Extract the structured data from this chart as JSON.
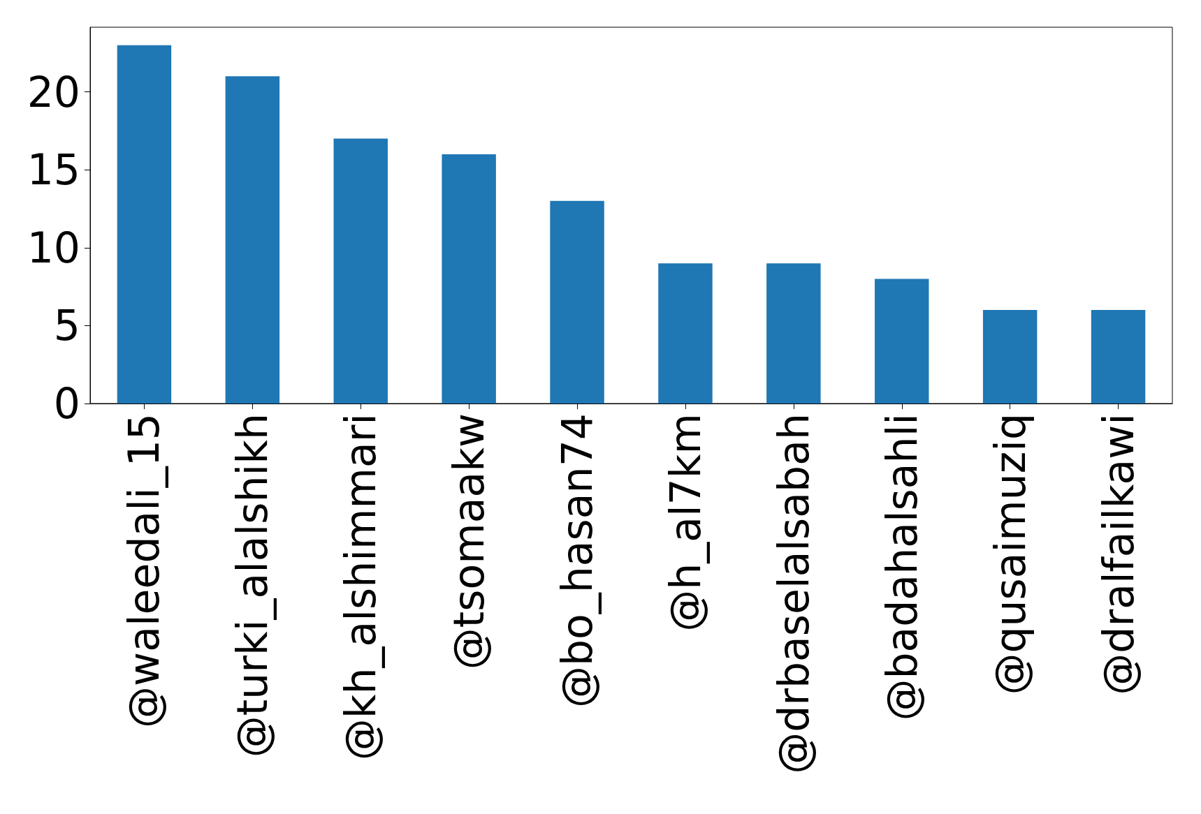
{
  "chart_data": {
    "type": "bar",
    "categories": [
      "@waleedali_15",
      "@turki_alalshikh",
      "@kh_alshimmari",
      "@tsomaakw",
      "@bo_hasan74",
      "@h_al7km",
      "@drbaselalsabah",
      "@badahalsahli",
      "@qusaimuziq",
      "@dralfailkawi"
    ],
    "values": [
      23,
      21,
      17,
      16,
      13,
      9,
      9,
      8,
      6,
      6
    ],
    "color": "#1f77b4",
    "ylim": [
      0,
      24.15
    ],
    "yticks": [
      0,
      5,
      10,
      15,
      20
    ],
    "grid": false
  }
}
